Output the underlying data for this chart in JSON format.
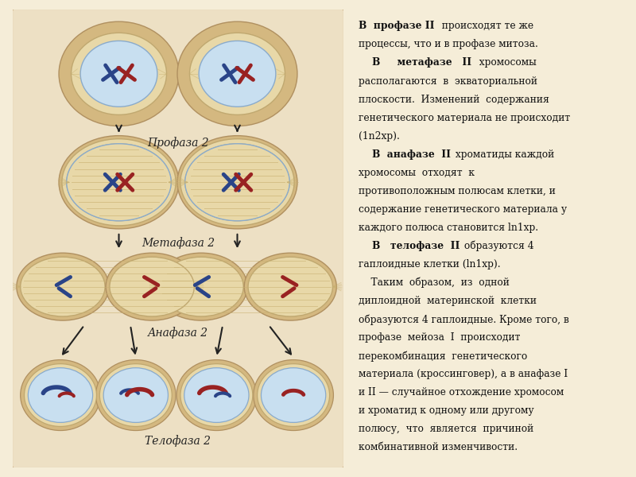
{
  "bg_color": "#f5edd8",
  "left_bg": "#ede0c4",
  "panel_border": "#c8a87a",
  "cell_outer": "#d4b880",
  "cell_cytoplasm": "#e8d8a8",
  "cell_nucleus_blue": "#c8dff0",
  "cell_body_beige": "#e0cfa0",
  "chr_blue": "#2a4488",
  "chr_red": "#992222",
  "spindle_color": "#c8b070",
  "arrow_color": "#222222",
  "label_color": "#222222",
  "title_prophase": "Профаза 2",
  "title_metaphase": "Метафаза 2",
  "title_anaphase": "Анафаза 2",
  "title_telophase": "Телофаза 2",
  "right_lines": [
    {
      "bold": "В  профазе II",
      "normal": "  происходят те же"
    },
    {
      "bold": "",
      "normal": "процессы, что и в профазе митоза."
    },
    {
      "bold": "    В     метафазе   II",
      "normal": "  хромосомы"
    },
    {
      "bold": "",
      "normal": "располагаются  в  экваториальной"
    },
    {
      "bold": "",
      "normal": "плоскости.  Изменений  содержания"
    },
    {
      "bold": "",
      "normal": "генетического материала не происходит"
    },
    {
      "bold": "",
      "normal": "(1n2хр)."
    },
    {
      "bold": "    В  анафазе  II",
      "normal": " хроматиды каждой"
    },
    {
      "bold": "",
      "normal": "хромосомы  отходят  к"
    },
    {
      "bold": "",
      "normal": "противоположным полюсам клетки, и"
    },
    {
      "bold": "",
      "normal": "содержание генетического материала у"
    },
    {
      "bold": "",
      "normal": "каждого полюса становится ln1хр."
    },
    {
      "bold": "    В   телофазе  II",
      "normal": " образуются 4"
    },
    {
      "bold": "",
      "normal": "гаплоидные клетки (ln1хр)."
    },
    {
      "bold": "",
      "normal": "    Таким  образом,  из  одной"
    },
    {
      "bold": "",
      "normal": "диплоидной  материнской  клетки"
    },
    {
      "bold": "",
      "normal": "образуются 4 гаплоидные. Кроме того, в"
    },
    {
      "bold": "",
      "normal": "профазе  мейоза  I  происходит"
    },
    {
      "bold": "",
      "normal": "перекомбинация  генетического"
    },
    {
      "bold": "",
      "normal": "материала (кроссинговер), а в анафазе I"
    },
    {
      "bold": "",
      "normal": "и II — случайное отхождение хромосом"
    },
    {
      "bold": "",
      "normal": "и хроматид к одному или другому"
    },
    {
      "bold": "",
      "normal": "полюсу,  что  является  причиной"
    },
    {
      "bold": "",
      "normal": "комбинативной изменчивости."
    }
  ]
}
